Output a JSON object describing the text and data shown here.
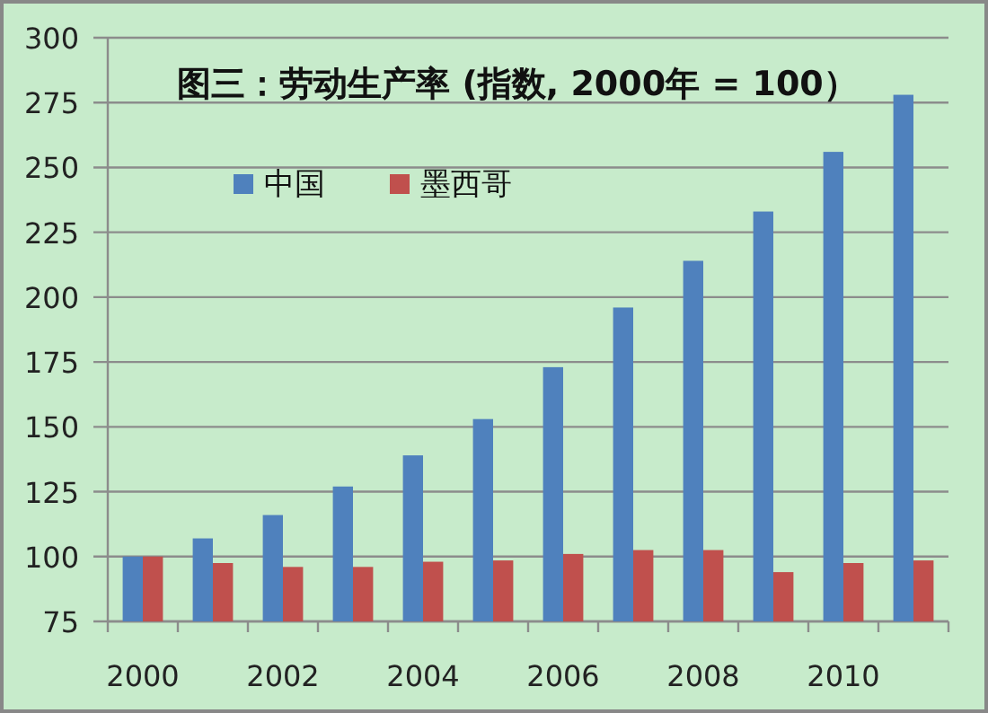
{
  "chart_data": {
    "type": "bar",
    "title": "图三：劳动生产率 (指数, 2000年 = 100）",
    "categories": [
      "2000",
      null,
      "2002",
      null,
      "2004",
      null,
      "2006",
      null,
      "2008",
      null,
      "2010",
      null
    ],
    "series": [
      {
        "name": "中国",
        "color": "#4f81bd",
        "values": [
          100,
          107,
          116,
          127,
          139,
          153,
          173,
          196,
          214,
          233,
          256,
          278
        ]
      },
      {
        "name": "墨西哥",
        "color": "#c0504d",
        "values": [
          100,
          97.5,
          96,
          96,
          98,
          98.5,
          101,
          102.5,
          102.5,
          94,
          97.5,
          98.5
        ]
      }
    ],
    "ylim": [
      75,
      300
    ],
    "yticks": [
      75,
      100,
      125,
      150,
      175,
      200,
      225,
      250,
      275,
      300
    ],
    "grid": "y",
    "legend": "top left"
  }
}
